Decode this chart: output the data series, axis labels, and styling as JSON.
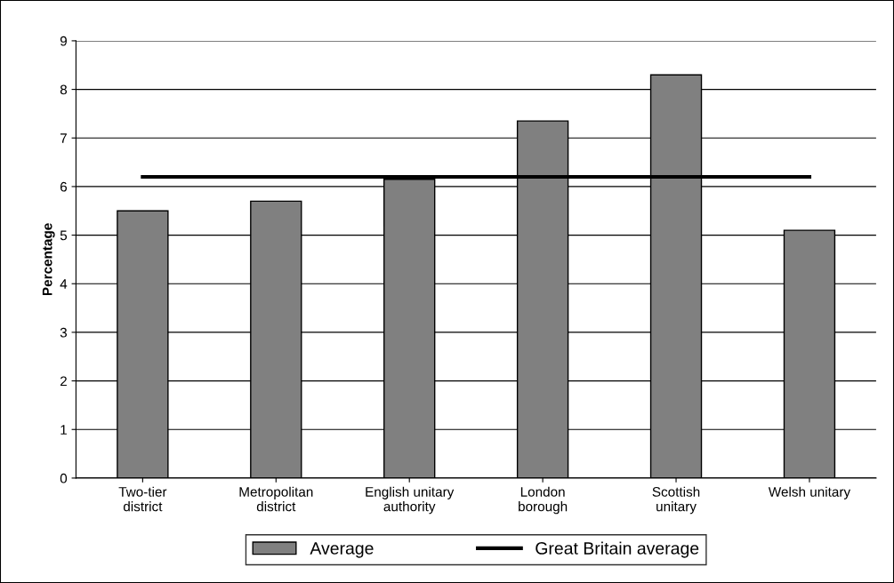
{
  "chart_data": {
    "type": "bar",
    "ylabel": "Percentage",
    "categories": [
      "Two-tier\ndistrict",
      "Metropolitan\ndistrict",
      "English unitary\nauthority",
      "London\nborough",
      "Scottish\nunitary",
      "Welsh unitary"
    ],
    "series": [
      {
        "name": "Average",
        "color": "#808080",
        "values": [
          5.5,
          5.7,
          6.15,
          7.35,
          8.3,
          5.1
        ]
      },
      {
        "name": "Great Britain average",
        "type": "line",
        "color": "#000000",
        "values": [
          6.2,
          6.2,
          6.2,
          6.2,
          6.2,
          6.2
        ]
      }
    ],
    "ylim": [
      0,
      9
    ],
    "yticks": [
      0,
      1,
      2,
      3,
      4,
      5,
      6,
      7,
      8,
      9
    ],
    "grid": "y",
    "legend": "bottom",
    "marker": "none",
    "line_style": "solid"
  }
}
